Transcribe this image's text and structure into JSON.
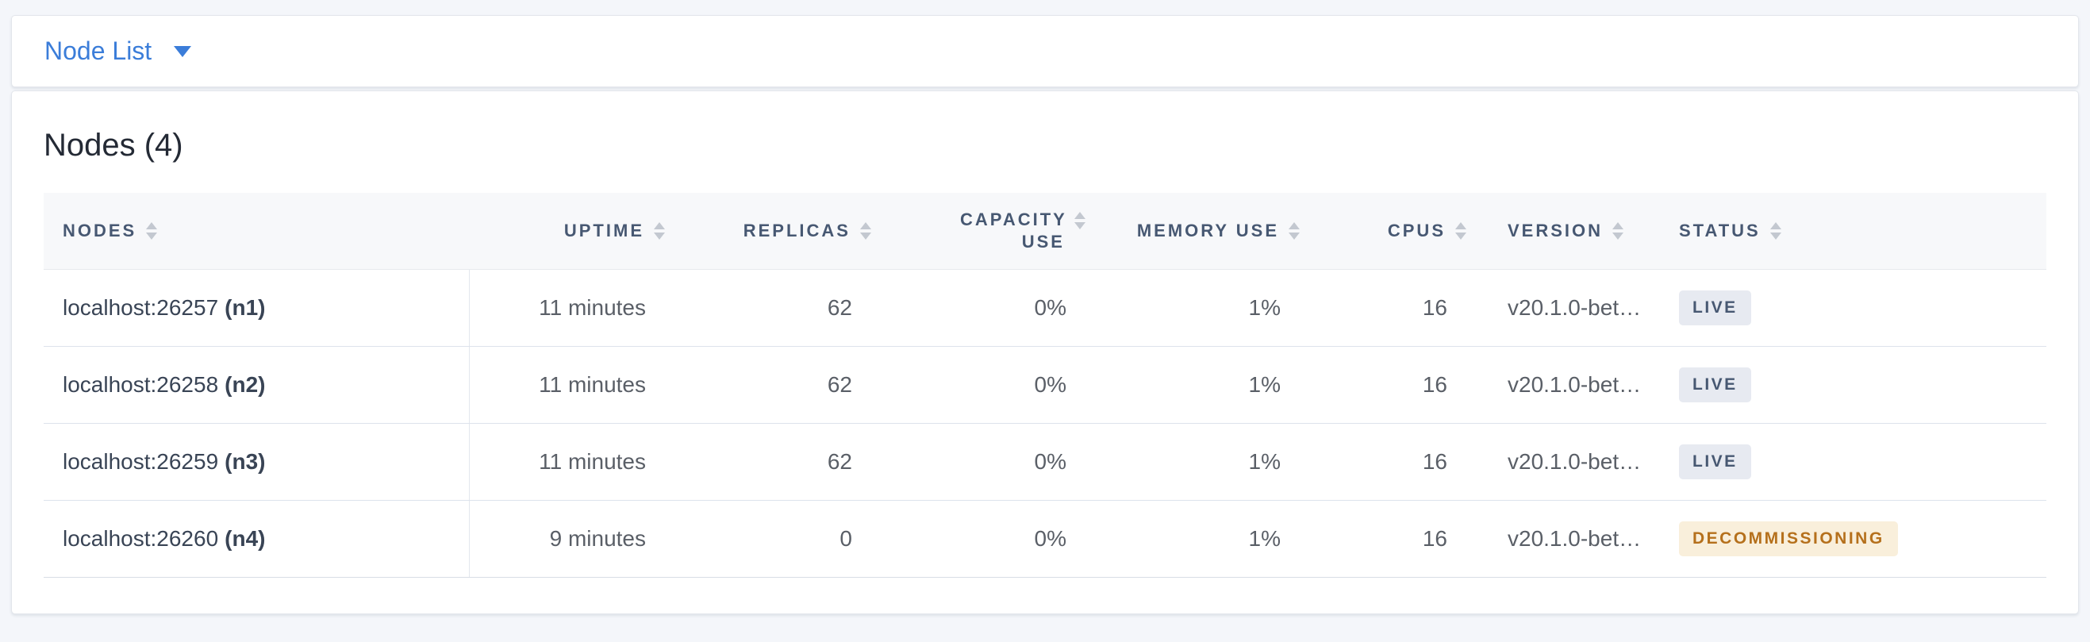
{
  "header_bar": {
    "title": "Node List"
  },
  "panel": {
    "title": "Nodes (4)"
  },
  "table": {
    "columns": [
      {
        "key": "nodes",
        "label": "NODES",
        "align": "left"
      },
      {
        "key": "uptime",
        "label": "UPTIME",
        "align": "right"
      },
      {
        "key": "replicas",
        "label": "REPLICAS",
        "align": "right"
      },
      {
        "key": "capacity_use",
        "label": "CAPACITY USE",
        "align": "right"
      },
      {
        "key": "memory_use",
        "label": "MEMORY USE",
        "align": "right"
      },
      {
        "key": "cpus",
        "label": "CPUS",
        "align": "right"
      },
      {
        "key": "version",
        "label": "VERSION",
        "align": "left"
      },
      {
        "key": "status",
        "label": "STATUS",
        "align": "left"
      }
    ],
    "rows": [
      {
        "node_address": "localhost:26257",
        "node_id": "(n1)",
        "uptime": "11 minutes",
        "replicas": "62",
        "capacity_use": "0%",
        "memory_use": "1%",
        "cpus": "16",
        "version": "v20.1.0-bet…",
        "status": "LIVE",
        "status_type": "live"
      },
      {
        "node_address": "localhost:26258",
        "node_id": "(n2)",
        "uptime": "11 minutes",
        "replicas": "62",
        "capacity_use": "0%",
        "memory_use": "1%",
        "cpus": "16",
        "version": "v20.1.0-bet…",
        "status": "LIVE",
        "status_type": "live"
      },
      {
        "node_address": "localhost:26259",
        "node_id": "(n3)",
        "uptime": "11 minutes",
        "replicas": "62",
        "capacity_use": "0%",
        "memory_use": "1%",
        "cpus": "16",
        "version": "v20.1.0-bet…",
        "status": "LIVE",
        "status_type": "live"
      },
      {
        "node_address": "localhost:26260",
        "node_id": "(n4)",
        "uptime": "9 minutes",
        "replicas": "0",
        "capacity_use": "0%",
        "memory_use": "1%",
        "cpus": "16",
        "version": "v20.1.0-bet…",
        "status": "DECOMMISSIONING",
        "status_type": "decommissioning"
      }
    ]
  },
  "colors": {
    "accent_blue": "#3b7dd9",
    "header_text": "#475872",
    "live_badge_bg": "#e7eaf1",
    "live_badge_text": "#475872",
    "decommissioning_badge_bg": "#f9efdb",
    "decommissioning_badge_text": "#b5701c",
    "page_background": "#f4f6fa"
  }
}
